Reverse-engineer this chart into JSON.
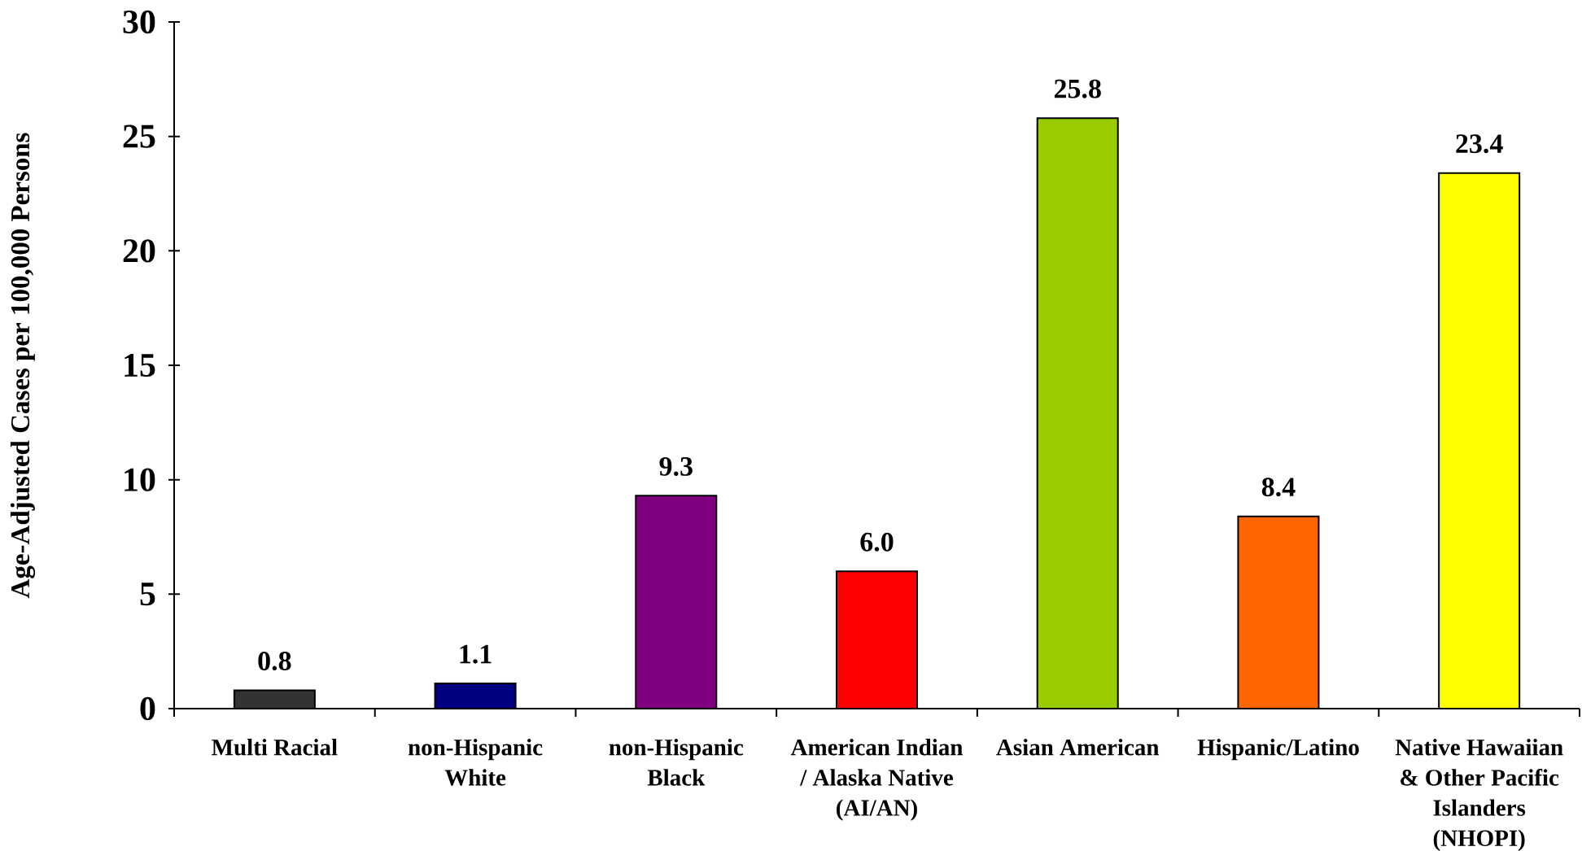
{
  "chart_data": {
    "type": "bar",
    "ylabel": "Age-Adjusted Cases per 100,000 Persons",
    "categories": [
      "Multi Racial",
      "non-Hispanic White",
      "non-Hispanic Black",
      "American Indian / Alaska Native (AI/AN)",
      "Asian American",
      "Hispanic/Latino",
      "Native Hawaiian & Other Pacific Islanders (NHOPI)"
    ],
    "values": [
      0.8,
      1.1,
      9.3,
      6.0,
      25.8,
      8.4,
      23.4
    ],
    "colors": [
      "#333333",
      "#000080",
      "#800080",
      "#ff0000",
      "#99cc00",
      "#ff6600",
      "#ffff00"
    ],
    "value_labels": [
      "0.8",
      "1.1",
      "9.3",
      "6.0",
      "25.8",
      "8.4",
      "23.4"
    ],
    "ylim": [
      0,
      30
    ],
    "yticks": [
      0,
      5,
      10,
      15,
      20,
      25,
      30
    ]
  }
}
